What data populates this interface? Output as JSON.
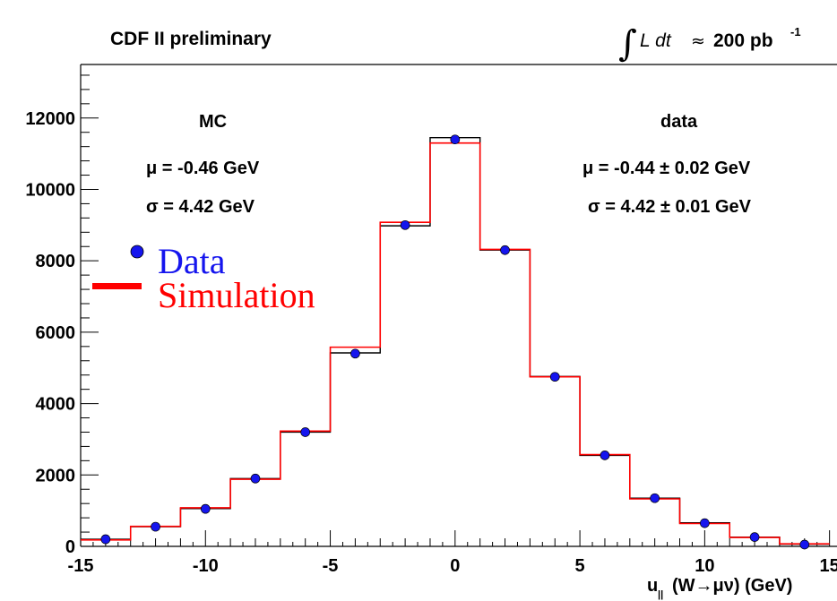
{
  "chart_data": {
    "type": "histogram",
    "title": "CDF II preliminary",
    "luminosity": {
      "integral_symbol": "∫",
      "text_italic": "L dt",
      "approx": "≈",
      "value": "200 pb",
      "sup": "-1"
    },
    "xlabel": {
      "main": "u",
      "sub": "||",
      "paren": "(W→μν) (GeV)"
    },
    "ylabel": "",
    "xlim": [
      -15,
      15
    ],
    "ylim": [
      0,
      13500
    ],
    "x_ticks": [
      "-15",
      "-10",
      "-5",
      "0",
      "5",
      "10",
      "15"
    ],
    "y_ticks": [
      "0",
      "2000",
      "4000",
      "6000",
      "8000",
      "10000",
      "12000"
    ],
    "bin_edges": [
      -15,
      -13,
      -11,
      -9,
      -7,
      -5,
      -3,
      -1,
      1,
      3,
      5,
      7,
      9,
      11,
      13,
      15
    ],
    "series": [
      {
        "name": "Data",
        "style": "points",
        "color": "#1515ee",
        "x": [
          -14,
          -12,
          -10,
          -8,
          -6,
          -4,
          -2,
          0,
          2,
          4,
          6,
          8,
          10,
          12,
          14
        ],
        "values": [
          200,
          550,
          1050,
          1900,
          3200,
          5400,
          9000,
          11400,
          8300,
          4750,
          2550,
          1350,
          650,
          260,
          50
        ]
      },
      {
        "name": "Simulation",
        "style": "step",
        "color": "#ff0000",
        "values": [
          180,
          560,
          1080,
          1880,
          3230,
          5580,
          9080,
          11300,
          8320,
          4750,
          2570,
          1330,
          640,
          250,
          70
        ]
      },
      {
        "name": "",
        "style": "step",
        "color": "#000000",
        "values": [
          200,
          550,
          1060,
          1900,
          3200,
          5420,
          8980,
          11450,
          8300,
          4760,
          2550,
          1350,
          660,
          260,
          60
        ]
      }
    ],
    "annotations": {
      "mc": {
        "heading": "MC",
        "mu": "μ = -0.46 GeV",
        "sigma": "σ = 4.42 GeV"
      },
      "data": {
        "heading": "data",
        "mu": "μ = -0.44 ± 0.02 GeV",
        "sigma": "σ = 4.42 ± 0.01 GeV"
      }
    },
    "legend": [
      {
        "label": "Data",
        "color": "#1515ee"
      },
      {
        "label": "Simulation",
        "color": "#ff0000"
      }
    ]
  }
}
